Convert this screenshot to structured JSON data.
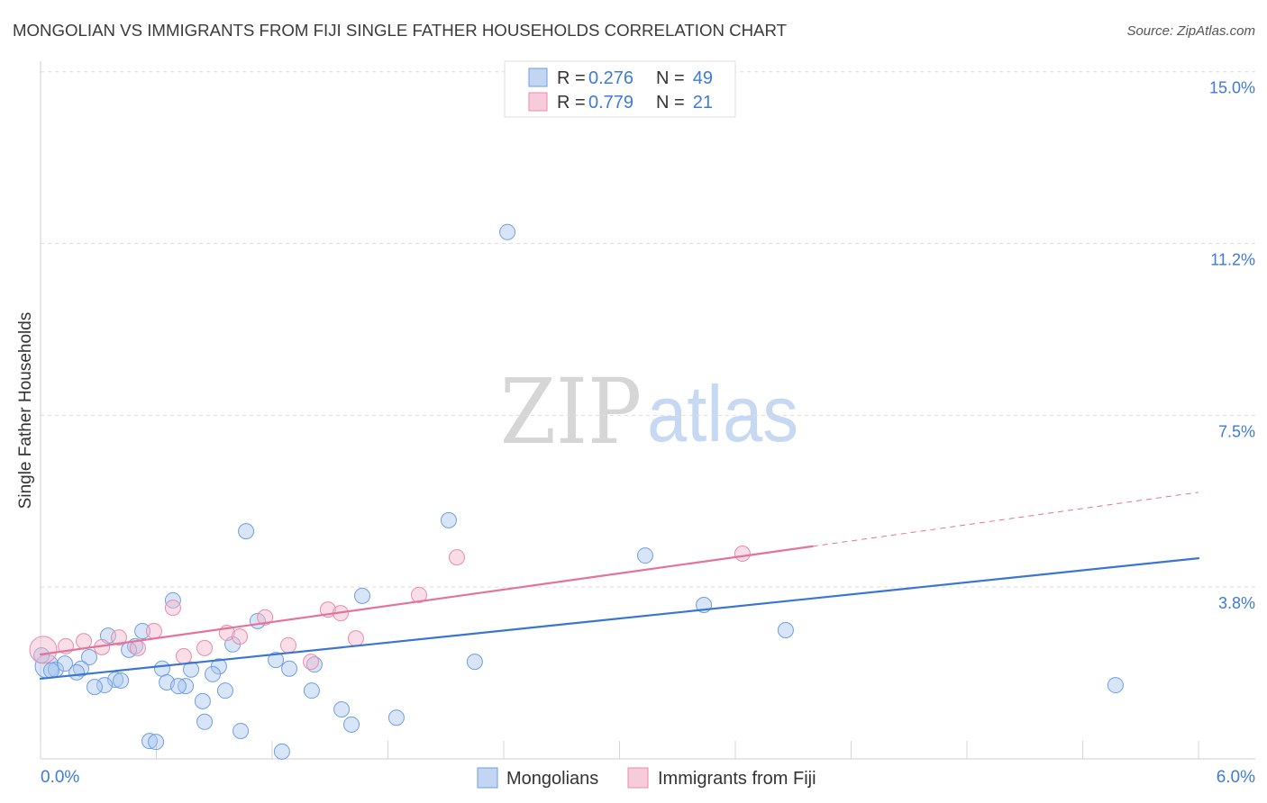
{
  "header": {
    "source": "Source: ZipAtlas.com"
  },
  "stats_legend": {
    "r_label": "R =",
    "n_label": "N ="
  },
  "watermark": {
    "part1": "ZIP",
    "part2": "atlas"
  },
  "chart_data": {
    "type": "scatter",
    "title": "MONGOLIAN VS IMMIGRANTS FROM FIJI SINGLE FATHER HOUSEHOLDS CORRELATION CHART",
    "ylabel": "Single Father Households",
    "xlim": [
      0,
      6
    ],
    "ylim": [
      0,
      15.23
    ],
    "grid": true,
    "x_ticks": [
      {
        "value": 0,
        "label": "0.0%"
      },
      {
        "value": 6,
        "label": "6.0%"
      }
    ],
    "x_tick_marks": [
      0,
      0.6,
      1.2,
      1.8,
      2.4,
      3.0,
      3.6,
      4.2,
      4.8,
      5.4,
      6.0
    ],
    "y_ticks": [
      {
        "value": 3.75,
        "label": "3.8%"
      },
      {
        "value": 7.5,
        "label": "7.5%"
      },
      {
        "value": 11.25,
        "label": "11.2%"
      },
      {
        "value": 15.0,
        "label": "15.0%"
      }
    ],
    "series": [
      {
        "name": "Mongolians",
        "r_text": "0.276",
        "n_text": "49",
        "color": "#a8c5ee",
        "edge_color": "#6e9fe2",
        "line_color": "#3a76cf",
        "points": [
          [
            0.033,
            2.02
          ],
          [
            2.419,
            11.5
          ],
          [
            2.115,
            5.21
          ],
          [
            1.065,
            4.97
          ],
          [
            3.133,
            4.44
          ],
          [
            1.667,
            3.56
          ],
          [
            0.686,
            3.46
          ],
          [
            3.437,
            3.36
          ],
          [
            1.125,
            3.01
          ],
          [
            0.528,
            2.79
          ],
          [
            3.861,
            2.81
          ],
          [
            0.35,
            2.69
          ],
          [
            0.995,
            2.5
          ],
          [
            0.49,
            2.46
          ],
          [
            0.458,
            2.38
          ],
          [
            0.252,
            2.22
          ],
          [
            1.219,
            2.16
          ],
          [
            1.419,
            2.06
          ],
          [
            2.25,
            2.12
          ],
          [
            0.079,
            1.95
          ],
          [
            0.21,
            1.97
          ],
          [
            0.63,
            1.97
          ],
          [
            0.78,
            1.95
          ],
          [
            0.924,
            2.02
          ],
          [
            1.289,
            1.97
          ],
          [
            0.187,
            1.89
          ],
          [
            0.892,
            1.85
          ],
          [
            0.388,
            1.73
          ],
          [
            0.416,
            1.71
          ],
          [
            0.654,
            1.67
          ],
          [
            0.332,
            1.61
          ],
          [
            0.28,
            1.57
          ],
          [
            0.752,
            1.59
          ],
          [
            0.714,
            1.59
          ],
          [
            0.957,
            1.49
          ],
          [
            1.405,
            1.49
          ],
          [
            5.57,
            1.61
          ],
          [
            0.84,
            1.26
          ],
          [
            1.56,
            1.08
          ],
          [
            0.85,
            0.81
          ],
          [
            1.844,
            0.9
          ],
          [
            1.611,
            0.75
          ],
          [
            1.037,
            0.61
          ],
          [
            0.565,
            0.39
          ],
          [
            0.598,
            0.37
          ],
          [
            1.251,
            0.16
          ],
          [
            0.126,
            2.08
          ],
          [
            0.056,
            1.93
          ],
          [
            0.005,
            2.26
          ]
        ],
        "trend": {
          "x": [
            0,
            6
          ],
          "y": [
            1.75,
            4.38
          ]
        }
      },
      {
        "name": "Immigrants from Fiji",
        "r_text": "0.779",
        "n_text": "21",
        "color": "#f5b5ca",
        "edge_color": "#e88caa",
        "line_color": "#e3739c",
        "points": [
          [
            0.014,
            2.38
          ],
          [
            3.637,
            4.48
          ],
          [
            2.157,
            4.4
          ],
          [
            1.961,
            3.58
          ],
          [
            1.489,
            3.26
          ],
          [
            1.555,
            3.18
          ],
          [
            0.686,
            3.3
          ],
          [
            1.163,
            3.09
          ],
          [
            0.588,
            2.79
          ],
          [
            0.966,
            2.75
          ],
          [
            0.406,
            2.65
          ],
          [
            1.032,
            2.67
          ],
          [
            1.634,
            2.63
          ],
          [
            0.224,
            2.57
          ],
          [
            0.131,
            2.46
          ],
          [
            0.318,
            2.44
          ],
          [
            0.504,
            2.42
          ],
          [
            0.85,
            2.42
          ],
          [
            1.284,
            2.48
          ],
          [
            0.742,
            2.24
          ],
          [
            1.401,
            2.12
          ]
        ],
        "trend": {
          "x": [
            0,
            6
          ],
          "y": [
            2.28,
            5.82
          ],
          "solid_until": 4.0
        }
      }
    ]
  }
}
